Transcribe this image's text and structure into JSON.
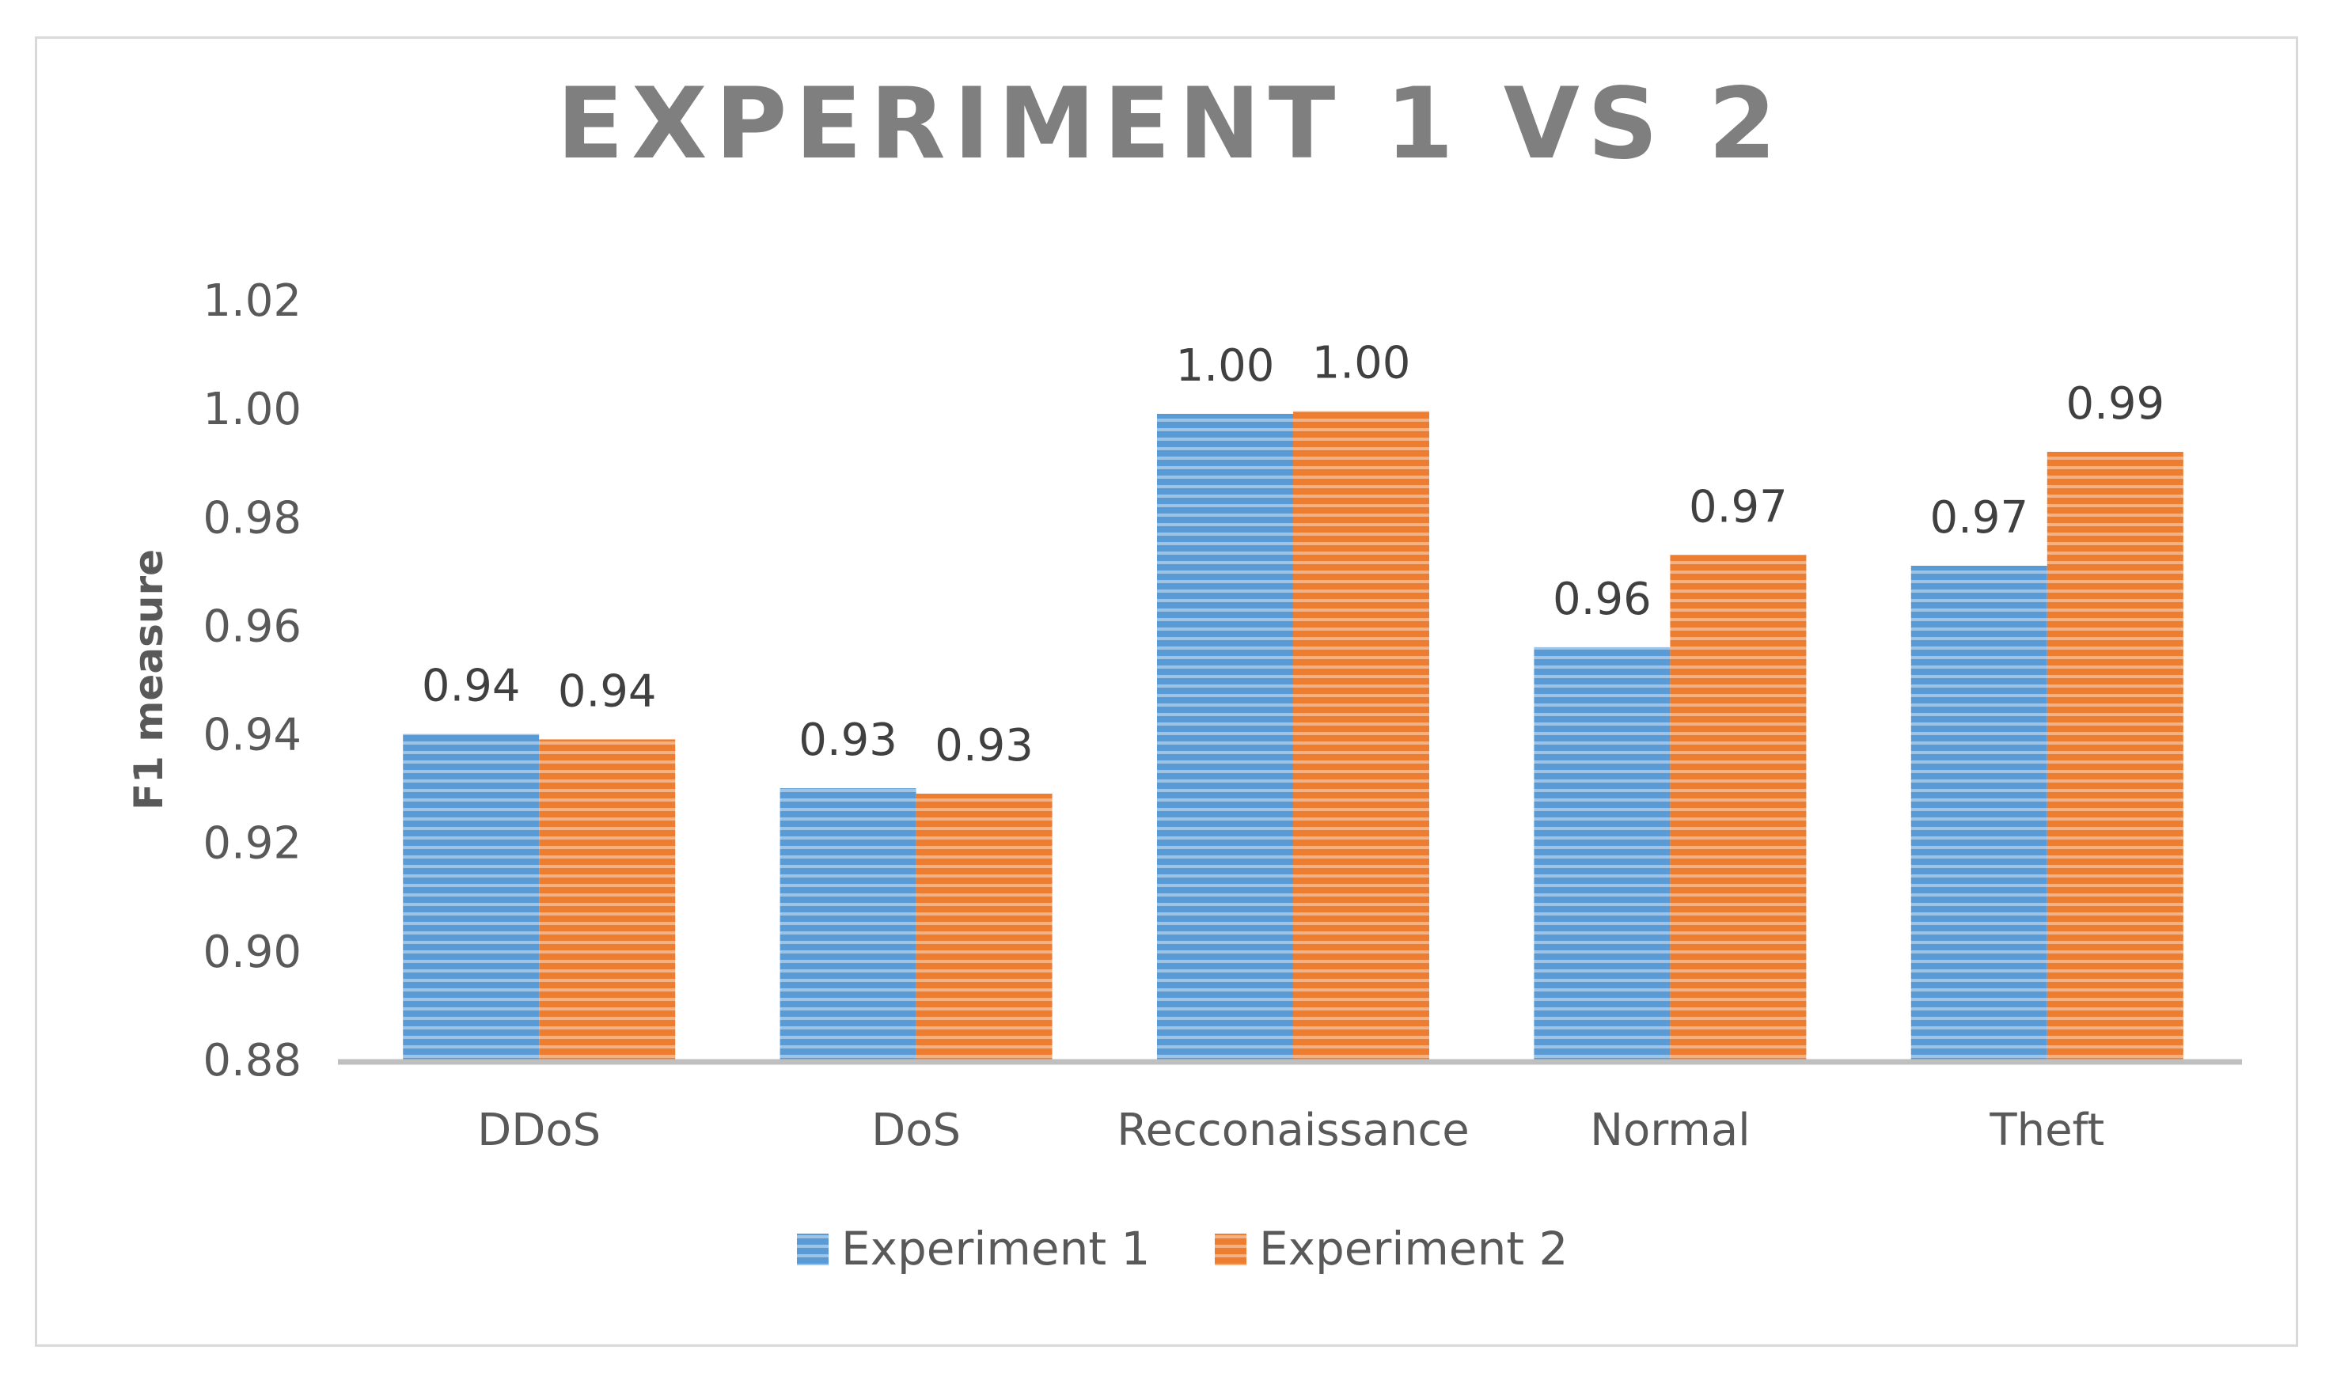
{
  "chart_data": {
    "type": "bar",
    "title": "EXPERIMENT 1 VS 2",
    "xlabel": "",
    "ylabel": "F1 measure",
    "ylim": [
      0.88,
      1.02
    ],
    "ytick_step": 0.02,
    "yticks": [
      "0.88",
      "0.90",
      "0.92",
      "0.94",
      "0.96",
      "0.98",
      "1.00",
      "1.02"
    ],
    "categories": [
      "DDoS",
      "DoS",
      "Recconaissance",
      "Normal",
      "Theft"
    ],
    "series": [
      {
        "name": "Experiment 1",
        "color": "#5b9bd5",
        "stripe_color": "#9dc3e6",
        "values": [
          0.94,
          0.93,
          0.999,
          0.956,
          0.971
        ],
        "labels": [
          "0.94",
          "0.93",
          "1.00",
          "0.96",
          "0.97"
        ]
      },
      {
        "name": "Experiment 2",
        "color": "#ed7d31",
        "stripe_color": "#f4b183",
        "values": [
          0.939,
          0.929,
          0.9995,
          0.973,
          0.992
        ],
        "labels": [
          "0.94",
          "0.93",
          "1.00",
          "0.97",
          "0.99"
        ]
      }
    ],
    "grid": false,
    "legend_position": "bottom-center",
    "data_labels": true
  }
}
